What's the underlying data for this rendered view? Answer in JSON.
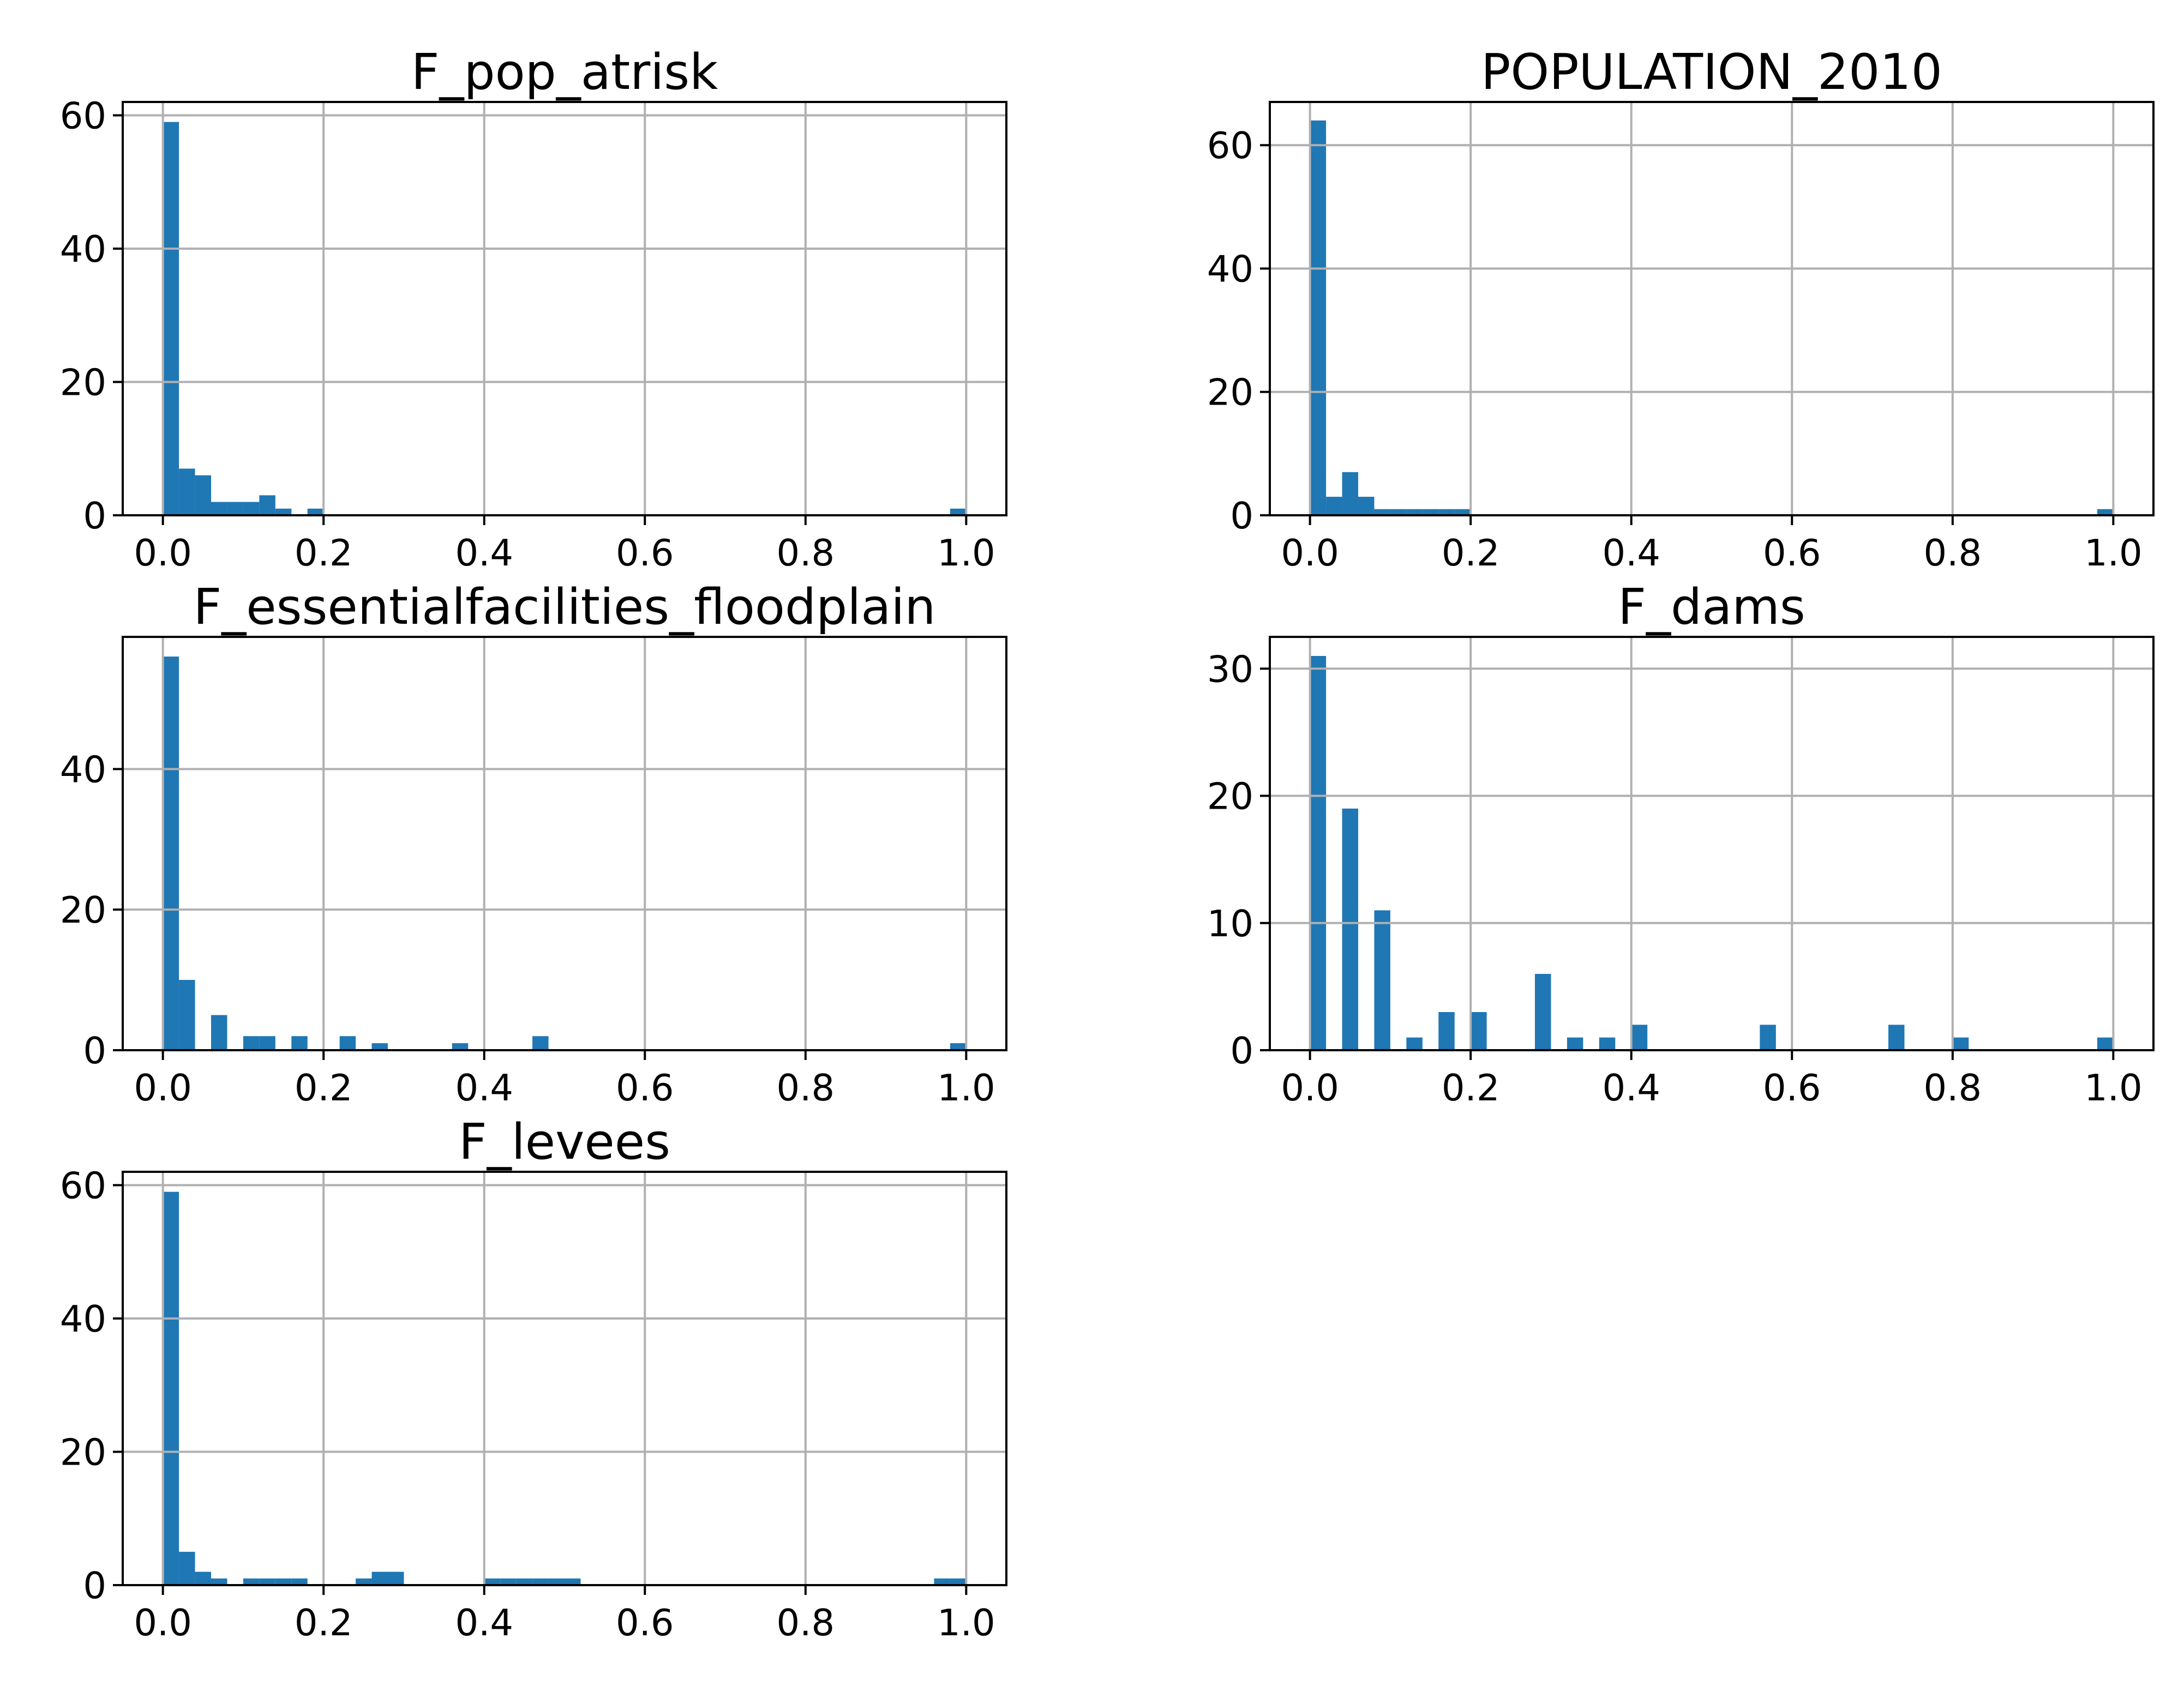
{
  "chart_data": [
    {
      "type": "bar",
      "title": "F_pop_atrisk",
      "xlim": [
        -0.05,
        1.05
      ],
      "ylim": [
        0,
        62
      ],
      "grid": true,
      "bar_color": "#1f77b4",
      "x_ticks": [
        0.0,
        0.2,
        0.4,
        0.6,
        0.8,
        1.0
      ],
      "x_tick_labels": [
        "0.0",
        "0.2",
        "0.4",
        "0.6",
        "0.8",
        "1.0"
      ],
      "y_ticks": [
        0,
        20,
        40,
        60
      ],
      "y_tick_labels": [
        "0",
        "20",
        "40",
        "60"
      ],
      "bin_edges": [
        0,
        0.02,
        0.04,
        0.06,
        0.08,
        0.1,
        0.12,
        0.14,
        0.16,
        0.18,
        0.2,
        0.22,
        0.24,
        0.26,
        0.28,
        0.3,
        0.32,
        0.34,
        0.36,
        0.38,
        0.4,
        0.42,
        0.44,
        0.46,
        0.48,
        0.5,
        0.52,
        0.54,
        0.56,
        0.58,
        0.6,
        0.62,
        0.64,
        0.66,
        0.68,
        0.7,
        0.72,
        0.74,
        0.76,
        0.78,
        0.8,
        0.82,
        0.84,
        0.86,
        0.88,
        0.9,
        0.92,
        0.94,
        0.96,
        0.98,
        1.0
      ],
      "counts": [
        59,
        7,
        6,
        2,
        2,
        2,
        3,
        1,
        0,
        1,
        0,
        0,
        0,
        0,
        0,
        0,
        0,
        0,
        0,
        0,
        0,
        0,
        0,
        0,
        0,
        0,
        0,
        0,
        0,
        0,
        0,
        0,
        0,
        0,
        0,
        0,
        0,
        0,
        0,
        0,
        0,
        0,
        0,
        0,
        0,
        0,
        0,
        0,
        0,
        1
      ]
    },
    {
      "type": "bar",
      "title": "POPULATION_2010",
      "xlim": [
        -0.05,
        1.05
      ],
      "ylim": [
        0,
        67
      ],
      "grid": true,
      "bar_color": "#1f77b4",
      "x_ticks": [
        0.0,
        0.2,
        0.4,
        0.6,
        0.8,
        1.0
      ],
      "x_tick_labels": [
        "0.0",
        "0.2",
        "0.4",
        "0.6",
        "0.8",
        "1.0"
      ],
      "y_ticks": [
        0,
        20,
        40,
        60
      ],
      "y_tick_labels": [
        "0",
        "20",
        "40",
        "60"
      ],
      "bin_edges": [
        0,
        0.02,
        0.04,
        0.06,
        0.08,
        0.1,
        0.12,
        0.14,
        0.16,
        0.18,
        0.2,
        0.22,
        0.24,
        0.26,
        0.28,
        0.3,
        0.32,
        0.34,
        0.36,
        0.38,
        0.4,
        0.42,
        0.44,
        0.46,
        0.48,
        0.5,
        0.52,
        0.54,
        0.56,
        0.58,
        0.6,
        0.62,
        0.64,
        0.66,
        0.68,
        0.7,
        0.72,
        0.74,
        0.76,
        0.78,
        0.8,
        0.82,
        0.84,
        0.86,
        0.88,
        0.9,
        0.92,
        0.94,
        0.96,
        0.98,
        1.0
      ],
      "counts": [
        64,
        3,
        7,
        3,
        1,
        1,
        1,
        1,
        1,
        1,
        0,
        0,
        0,
        0,
        0,
        0,
        0,
        0,
        0,
        0,
        0,
        0,
        0,
        0,
        0,
        0,
        0,
        0,
        0,
        0,
        0,
        0,
        0,
        0,
        0,
        0,
        0,
        0,
        0,
        0,
        0,
        0,
        0,
        0,
        0,
        0,
        0,
        0,
        0,
        1
      ]
    },
    {
      "type": "bar",
      "title": "F_essentialfacilities_floodplain",
      "xlim": [
        -0.05,
        1.05
      ],
      "ylim": [
        0,
        58.8
      ],
      "grid": true,
      "bar_color": "#1f77b4",
      "x_ticks": [
        0.0,
        0.2,
        0.4,
        0.6,
        0.8,
        1.0
      ],
      "x_tick_labels": [
        "0.0",
        "0.2",
        "0.4",
        "0.6",
        "0.8",
        "1.0"
      ],
      "y_ticks": [
        0,
        20,
        40
      ],
      "y_tick_labels": [
        "0",
        "20",
        "40"
      ],
      "bin_edges": [
        0,
        0.02,
        0.04,
        0.06,
        0.08,
        0.1,
        0.12,
        0.14,
        0.16,
        0.18,
        0.2,
        0.22,
        0.24,
        0.26,
        0.28,
        0.3,
        0.32,
        0.34,
        0.36,
        0.38,
        0.4,
        0.42,
        0.44,
        0.46,
        0.48,
        0.5,
        0.52,
        0.54,
        0.56,
        0.58,
        0.6,
        0.62,
        0.64,
        0.66,
        0.68,
        0.7,
        0.72,
        0.74,
        0.76,
        0.78,
        0.8,
        0.82,
        0.84,
        0.86,
        0.88,
        0.9,
        0.92,
        0.94,
        0.96,
        0.98,
        1.0
      ],
      "counts": [
        56,
        10,
        0,
        5,
        0,
        2,
        2,
        0,
        2,
        0,
        0,
        2,
        0,
        1,
        0,
        0,
        0,
        0,
        1,
        0,
        0,
        0,
        0,
        2,
        0,
        0,
        0,
        0,
        0,
        0,
        0,
        0,
        0,
        0,
        0,
        0,
        0,
        0,
        0,
        0,
        0,
        0,
        0,
        0,
        0,
        0,
        0,
        0,
        0,
        1
      ]
    },
    {
      "type": "bar",
      "title": "F_dams",
      "xlim": [
        -0.05,
        1.05
      ],
      "ylim": [
        0,
        32.5
      ],
      "grid": true,
      "bar_color": "#1f77b4",
      "x_ticks": [
        0.0,
        0.2,
        0.4,
        0.6,
        0.8,
        1.0
      ],
      "x_tick_labels": [
        "0.0",
        "0.2",
        "0.4",
        "0.6",
        "0.8",
        "1.0"
      ],
      "y_ticks": [
        0,
        10,
        20,
        30
      ],
      "y_tick_labels": [
        "0",
        "10",
        "20",
        "30"
      ],
      "bin_edges": [
        0,
        0.02,
        0.04,
        0.06,
        0.08,
        0.1,
        0.12,
        0.14,
        0.16,
        0.18,
        0.2,
        0.22,
        0.24,
        0.26,
        0.28,
        0.3,
        0.32,
        0.34,
        0.36,
        0.38,
        0.4,
        0.42,
        0.44,
        0.46,
        0.48,
        0.5,
        0.52,
        0.54,
        0.56,
        0.58,
        0.6,
        0.62,
        0.64,
        0.66,
        0.68,
        0.7,
        0.72,
        0.74,
        0.76,
        0.78,
        0.8,
        0.82,
        0.84,
        0.86,
        0.88,
        0.9,
        0.92,
        0.94,
        0.96,
        0.98,
        1.0
      ],
      "counts": [
        31,
        0,
        19,
        0,
        11,
        0,
        1,
        0,
        3,
        0,
        3,
        0,
        0,
        0,
        6,
        0,
        1,
        0,
        1,
        0,
        2,
        0,
        0,
        0,
        0,
        0,
        0,
        0,
        2,
        0,
        0,
        0,
        0,
        0,
        0,
        0,
        2,
        0,
        0,
        0,
        1,
        0,
        0,
        0,
        0,
        0,
        0,
        0,
        0,
        1
      ]
    },
    {
      "type": "bar",
      "title": "F_levees",
      "xlim": [
        -0.05,
        1.05
      ],
      "ylim": [
        0,
        62
      ],
      "grid": true,
      "bar_color": "#1f77b4",
      "x_ticks": [
        0.0,
        0.2,
        0.4,
        0.6,
        0.8,
        1.0
      ],
      "x_tick_labels": [
        "0.0",
        "0.2",
        "0.4",
        "0.6",
        "0.8",
        "1.0"
      ],
      "y_ticks": [
        0,
        20,
        40,
        60
      ],
      "y_tick_labels": [
        "0",
        "20",
        "40",
        "60"
      ],
      "bin_edges": [
        0,
        0.02,
        0.04,
        0.06,
        0.08,
        0.1,
        0.12,
        0.14,
        0.16,
        0.18,
        0.2,
        0.22,
        0.24,
        0.26,
        0.28,
        0.3,
        0.32,
        0.34,
        0.36,
        0.38,
        0.4,
        0.42,
        0.44,
        0.46,
        0.48,
        0.5,
        0.52,
        0.54,
        0.56,
        0.58,
        0.6,
        0.62,
        0.64,
        0.66,
        0.68,
        0.7,
        0.72,
        0.74,
        0.76,
        0.78,
        0.8,
        0.82,
        0.84,
        0.86,
        0.88,
        0.9,
        0.92,
        0.94,
        0.96,
        0.98,
        1.0
      ],
      "counts": [
        59,
        5,
        2,
        1,
        0,
        1,
        1,
        1,
        1,
        0,
        0,
        0,
        1,
        2,
        2,
        0,
        0,
        0,
        0,
        0,
        1,
        1,
        1,
        1,
        1,
        1,
        0,
        0,
        0,
        0,
        0,
        0,
        0,
        0,
        0,
        0,
        0,
        0,
        0,
        0,
        0,
        0,
        0,
        0,
        0,
        0,
        0,
        0,
        1,
        1
      ]
    }
  ]
}
